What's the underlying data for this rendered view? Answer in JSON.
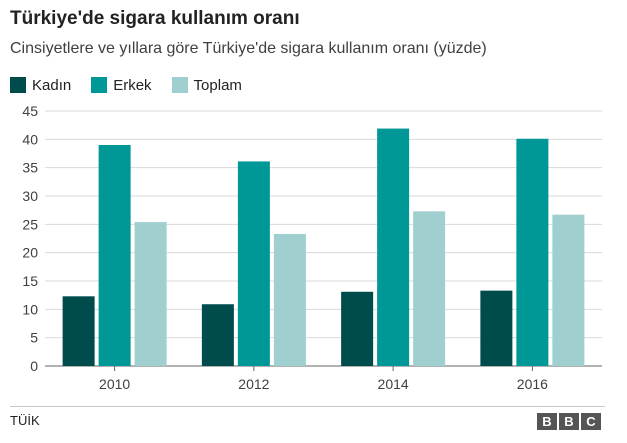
{
  "header": {
    "title": "Türkiye'de sigara kullanım oranı",
    "subtitle": "Cinsiyetlere ve yıllara göre Türkiye'de sigara kullanım oranı (yüzde)"
  },
  "footer": {
    "source": "TÜİK",
    "logo": [
      "B",
      "B",
      "C"
    ]
  },
  "colors": {
    "kadin": "#004c4c",
    "erkek": "#009797",
    "toplam": "#9fcfcf",
    "grid": "#d9d9d9",
    "axis": "#666666"
  },
  "chart_data": {
    "type": "bar",
    "categories": [
      "2010",
      "2012",
      "2014",
      "2016"
    ],
    "series": [
      {
        "name": "Kadın",
        "values": [
          12.3,
          10.9,
          13.1,
          13.3
        ]
      },
      {
        "name": "Erkek",
        "values": [
          39.0,
          36.1,
          41.9,
          40.1
        ]
      },
      {
        "name": "Toplam",
        "values": [
          25.4,
          23.3,
          27.3,
          26.7
        ]
      }
    ],
    "ylim": [
      0,
      45
    ],
    "yticks": [
      "0",
      "5",
      "10",
      "15",
      "20",
      "25",
      "30",
      "35",
      "40",
      "45"
    ],
    "grid": true,
    "legend_position": "top-left"
  }
}
